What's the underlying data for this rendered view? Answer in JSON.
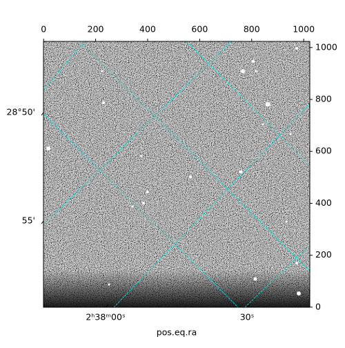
{
  "chart_data": {
    "type": "image",
    "xlabel": "pos.eq.ra",
    "xlim": [
      -0.5,
      1023.5
    ],
    "ylim": [
      -0.5,
      1023.5
    ],
    "xticks": [
      0,
      200,
      400,
      600,
      800,
      1000
    ],
    "yticks": [
      0,
      200,
      400,
      600,
      800,
      1000
    ],
    "ra_ticks": [
      {
        "value": 39.5,
        "label": "2ʰ38ᵐ00ˢ"
      },
      {
        "value": 39.625,
        "label": "30ˢ"
      }
    ],
    "dec_ticks": [
      {
        "value": 28.8333,
        "label": "28°50'"
      },
      {
        "value": 28.9167,
        "label": "55'"
      }
    ],
    "grid_color": "#00e5e5"
  }
}
